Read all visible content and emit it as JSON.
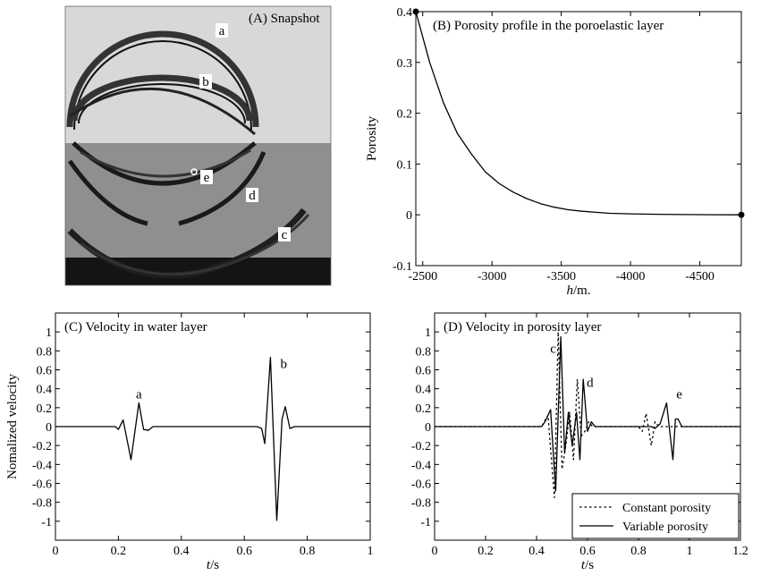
{
  "panelA": {
    "title": "(A) Snapshot",
    "wave_labels": [
      "a",
      "b",
      "e",
      "d",
      "c"
    ]
  },
  "chart_data": [
    {
      "id": "B",
      "type": "line",
      "title": "(B) Porosity profile in the poroelastic layer",
      "xlabel": "h/m.",
      "ylabel": "Porosity",
      "xlim": [
        -2450,
        -4800
      ],
      "ylim": [
        -0.1,
        0.4
      ],
      "xticks": [
        -2500,
        -3000,
        -3500,
        -4000,
        -4500
      ],
      "yticks": [
        -0.1,
        0,
        0.1,
        0.2,
        0.3,
        0.4
      ],
      "x": [
        -2450,
        -2550,
        -2650,
        -2750,
        -2850,
        -2950,
        -3050,
        -3150,
        -3250,
        -3350,
        -3450,
        -3550,
        -3650,
        -3750,
        -3850,
        -4000,
        -4200,
        -4400,
        -4600,
        -4800
      ],
      "y": [
        0.4,
        0.3,
        0.22,
        0.16,
        0.12,
        0.085,
        0.062,
        0.045,
        0.032,
        0.022,
        0.015,
        0.01,
        0.007,
        0.005,
        0.003,
        0.002,
        0.001,
        0.0005,
        0.0002,
        0.0
      ],
      "endpoints": [
        [
          -2450,
          0.4
        ],
        [
          -4800,
          0.0
        ]
      ]
    },
    {
      "id": "C",
      "type": "line",
      "title": "(C) Velocity in water layer",
      "xlabel": "t/s",
      "ylabel": "Nomalized velocity",
      "xlim": [
        0,
        1
      ],
      "ylim": [
        -1.2,
        1.2
      ],
      "xticks": [
        0,
        0.2,
        0.4,
        0.6,
        0.8,
        1
      ],
      "yticks": [
        -1,
        -0.8,
        -0.6,
        -0.4,
        -0.2,
        0,
        0.2,
        0.4,
        0.6,
        0.8,
        1
      ],
      "x": [
        0,
        0.19,
        0.2,
        0.215,
        0.24,
        0.265,
        0.28,
        0.295,
        0.31,
        0.64,
        0.655,
        0.665,
        0.683,
        0.703,
        0.72,
        0.73,
        0.745,
        0.76,
        1.0
      ],
      "y": [
        0,
        0,
        -0.03,
        0.07,
        -0.35,
        0.25,
        -0.03,
        -0.04,
        0,
        0,
        -0.02,
        -0.18,
        0.73,
        -0.99,
        0.08,
        0.21,
        -0.02,
        0,
        0
      ],
      "annotations": [
        {
          "text": "a",
          "x": 0.265,
          "y": 0.3
        },
        {
          "text": "b",
          "x": 0.725,
          "y": 0.62
        }
      ]
    },
    {
      "id": "D",
      "type": "line",
      "title": "(D) Velocity in porosity layer",
      "xlabel": "t/s",
      "ylabel": "",
      "xlim": [
        0,
        1.2
      ],
      "ylim": [
        -1.2,
        1.2
      ],
      "xticks": [
        0,
        0.2,
        0.4,
        0.6,
        0.8,
        1,
        1.2
      ],
      "yticks": [
        -1,
        -0.8,
        -0.6,
        -0.4,
        -0.2,
        0,
        0.2,
        0.4,
        0.6,
        0.8,
        1
      ],
      "legend": "bottom-right",
      "series": [
        {
          "name": "Constant porosity",
          "style": "dotted",
          "x": [
            0,
            0.42,
            0.43,
            0.445,
            0.47,
            0.485,
            0.5,
            0.515,
            0.53,
            0.545,
            0.56,
            0.575,
            0.59,
            0.605,
            0.62,
            0.8,
            0.815,
            0.83,
            0.85,
            0.865,
            0.88,
            1.2
          ],
          "y": [
            0,
            0,
            0.05,
            0.12,
            -0.75,
            1.0,
            -0.45,
            -0.2,
            0.15,
            -0.35,
            0.5,
            -0.1,
            -0.05,
            0.05,
            0,
            0,
            -0.05,
            0.14,
            -0.2,
            0.05,
            0,
            0
          ]
        },
        {
          "name": "Variable porosity",
          "style": "solid",
          "x": [
            0,
            0.42,
            0.435,
            0.455,
            0.475,
            0.495,
            0.51,
            0.525,
            0.54,
            0.557,
            0.57,
            0.583,
            0.6,
            0.615,
            0.63,
            0.85,
            0.865,
            0.885,
            0.91,
            0.935,
            0.945,
            0.955,
            0.97,
            1.2
          ],
          "y": [
            0,
            0,
            0.06,
            0.18,
            -0.68,
            0.95,
            -0.28,
            0.15,
            -0.2,
            0.15,
            -0.35,
            0.5,
            -0.05,
            0.05,
            0,
            0,
            -0.02,
            0.03,
            0.25,
            -0.35,
            0.08,
            0.08,
            0,
            0
          ]
        }
      ],
      "annotations": [
        {
          "text": "c",
          "x": 0.465,
          "y": 0.78
        },
        {
          "text": "d",
          "x": 0.61,
          "y": 0.42
        },
        {
          "text": "e",
          "x": 0.96,
          "y": 0.3
        }
      ]
    }
  ]
}
